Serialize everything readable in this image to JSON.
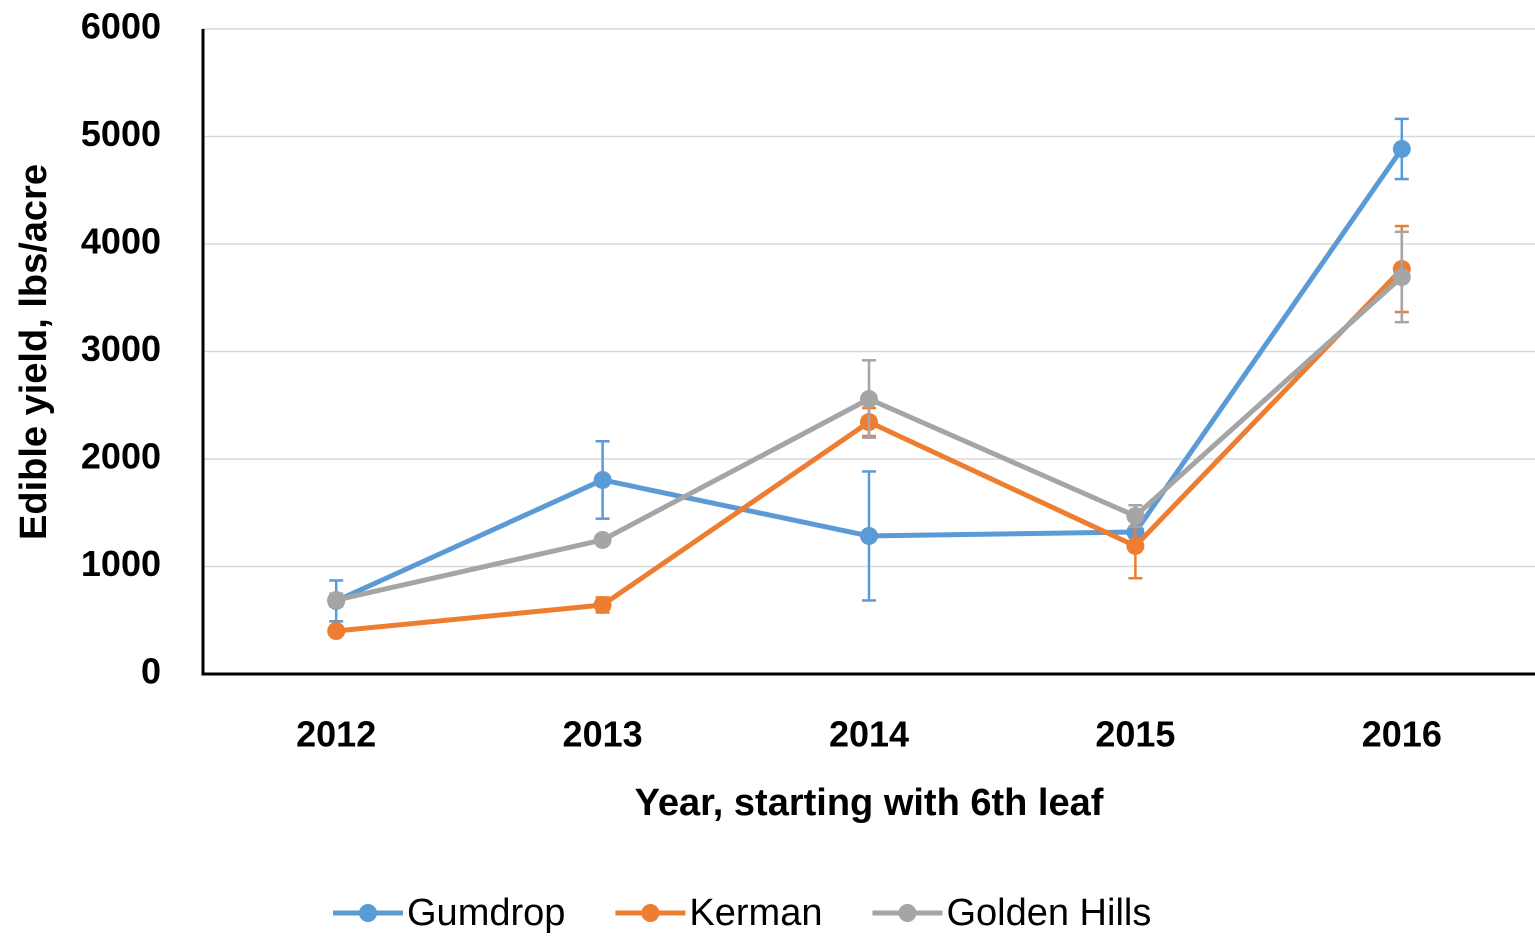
{
  "chart_data": {
    "type": "line",
    "x_label": "Year, starting with 6th leaf",
    "y_label": "Edible yield, lbs/acre",
    "categories": [
      "2012",
      "2013",
      "2014",
      "2015",
      "2016"
    ],
    "series": [
      {
        "name": "Gumdrop",
        "color": "#5b9bd5",
        "values": [
          680,
          1805,
          1284,
          1321,
          4884
        ],
        "errors": [
          190,
          360,
          600,
          50,
          280
        ]
      },
      {
        "name": "Kerman",
        "color": "#ed7d31",
        "values": [
          400,
          642,
          2344,
          1191,
          3767
        ],
        "errors": [
          30,
          70,
          130,
          300,
          400
        ]
      },
      {
        "name": "Golden Hills",
        "color": "#a5a5a5",
        "values": [
          688,
          1247,
          2558,
          1470,
          3693
        ],
        "errors": [
          60,
          30,
          360,
          100,
          420
        ]
      }
    ],
    "ylim": [
      0,
      6000
    ],
    "yticks": [
      0,
      1000,
      2000,
      3000,
      4000,
      5000,
      6000
    ],
    "grid": true,
    "legend": "bottom"
  }
}
